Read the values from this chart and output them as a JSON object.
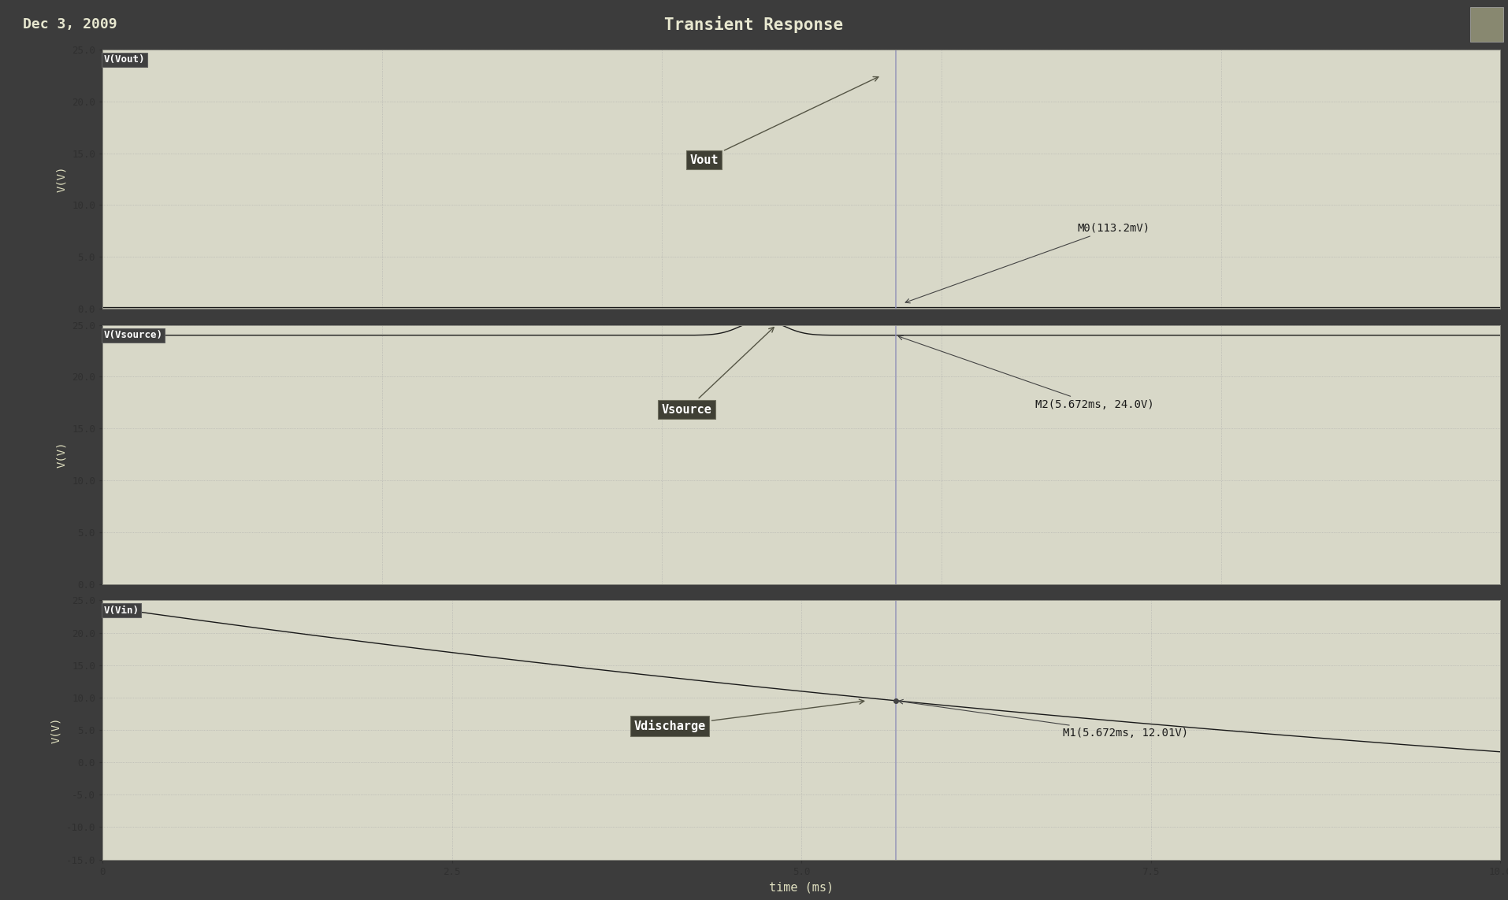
{
  "title": "Transient Response",
  "date_label": "Dec 3, 2009",
  "xlabel": "time (ms)",
  "xmin": 0,
  "xmax": 10.0,
  "cursor_x": 5.672,
  "subplot1": {
    "ylabel": "V(V)",
    "ymin": 0.0,
    "ymax": 25.0,
    "yticks": [
      0.0,
      5.0,
      10.0,
      15.0,
      20.0,
      25.0
    ],
    "ytick_labels": [
      "0.0",
      "5.0",
      "10.0",
      "15.0",
      "20.0",
      "25.0"
    ],
    "signal_label": "V(Vout)",
    "marker_label": "M0(113.2mV)",
    "signal_color": "#1a1a1a",
    "bg_color": "#d8d8c8"
  },
  "subplot2": {
    "ylabel": "V(V)",
    "ymin": 0.0,
    "ymax": 25.0,
    "yticks": [
      0.0,
      5.0,
      10.0,
      15.0,
      20.0,
      25.0
    ],
    "ytick_labels": [
      "0.0",
      "5.0",
      "10.0",
      "15.0",
      "20.0",
      "25.0"
    ],
    "signal_label": "V(Vsource)",
    "marker_label": "M2(5.672ms, 24.0V)",
    "signal_color": "#1a1a1a",
    "bg_color": "#d8d8c8"
  },
  "subplot3": {
    "ylabel": "V(V)",
    "ymin": -15.0,
    "ymax": 25.0,
    "yticks": [
      -15.0,
      -10.0,
      -5.0,
      0.0,
      5.0,
      10.0,
      15.0,
      20.0,
      25.0
    ],
    "ytick_labels": [
      "-15.0",
      "-10.0",
      "-5.0",
      "0.0",
      "5.0",
      "10.0",
      "15.0",
      "20.0",
      "25.0"
    ],
    "signal_label": "V(Vin)",
    "marker_label": "M1(5.672ms, 12.01V)",
    "signal_color": "#1a1a1a",
    "bg_color": "#d8d8c8"
  },
  "header_bg": "#3c3c3c",
  "header_text_color": "#e8e8d0",
  "separator_color": "#2a2a2a",
  "plot_bg": "#c8c8b0",
  "ylabel_panel_bg": "#3c3c3c",
  "grid_color": "#aaaaaa",
  "axis_label_color": "#e0e0c0",
  "tick_color": "#303030",
  "tick_label_color": "#303030",
  "cursor_color": "#9090b8",
  "marker_text_color": "#1a1a1a",
  "annotation_color": "#444444",
  "signal_label_box_bg": "#555540",
  "signal_label_box_fg": "#ffffff",
  "vout_label_box_bg": "#404040",
  "vout_label_box_fg": "#ffffff",
  "bottom_panel_bg": "#3c3c3c",
  "vout_tau": 999999,
  "vdischarge_v_init": 24.0,
  "vdischarge_v_final": -22.0,
  "vdischarge_tau": 15.0,
  "vsource_flat": 24.0
}
